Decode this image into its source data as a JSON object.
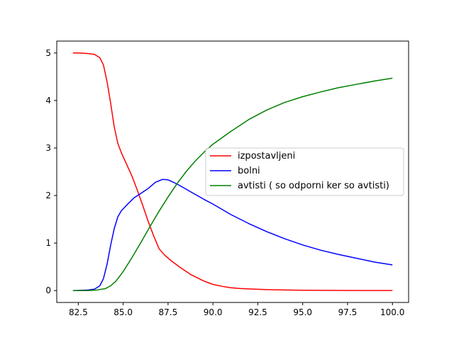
{
  "chart_data": {
    "type": "line",
    "title": "",
    "xlabel": "",
    "ylabel": "",
    "xlim": [
      81.3,
      100.9
    ],
    "ylim": [
      -0.25,
      5.25
    ],
    "xticks": [
      82.5,
      85.0,
      87.5,
      90.0,
      92.5,
      95.0,
      97.5,
      100.0
    ],
    "xtick_labels": [
      "82.5",
      "85.0",
      "87.5",
      "90.0",
      "92.5",
      "95.0",
      "97.5",
      "100.0"
    ],
    "yticks": [
      0,
      1,
      2,
      3,
      4,
      5
    ],
    "ytick_labels": [
      "0",
      "1",
      "2",
      "3",
      "4",
      "5"
    ],
    "grid": false,
    "legend_position": "center-right",
    "series": [
      {
        "name": "izpostavljeni",
        "color": "#ff0000",
        "x": [
          82.2,
          82.5,
          83.0,
          83.4,
          83.7,
          83.9,
          84.1,
          84.3,
          84.5,
          84.7,
          84.9,
          85.2,
          85.5,
          85.8,
          86.1,
          86.4,
          86.7,
          87.0,
          87.3,
          87.7,
          88.2,
          88.8,
          89.5,
          90.0,
          90.5,
          91.0,
          91.5,
          92.0,
          93.0,
          94.0,
          95.0,
          96.0,
          97.0,
          98.0,
          99.0,
          100.0
        ],
        "y": [
          5.0,
          5.0,
          4.99,
          4.97,
          4.9,
          4.75,
          4.4,
          3.95,
          3.45,
          3.1,
          2.9,
          2.65,
          2.4,
          2.1,
          1.78,
          1.45,
          1.15,
          0.88,
          0.75,
          0.62,
          0.48,
          0.33,
          0.2,
          0.13,
          0.09,
          0.06,
          0.045,
          0.035,
          0.02,
          0.012,
          0.008,
          0.005,
          0.003,
          0.002,
          0.001,
          0.001
        ]
      },
      {
        "name": "bolni",
        "color": "#0000ff",
        "x": [
          82.2,
          83.0,
          83.4,
          83.7,
          83.9,
          84.1,
          84.3,
          84.5,
          84.7,
          84.9,
          85.2,
          85.6,
          86.0,
          86.4,
          86.8,
          87.2,
          87.5,
          87.8,
          88.2,
          88.8,
          89.5,
          90.0,
          91.0,
          92.0,
          93.0,
          94.0,
          95.0,
          96.0,
          97.0,
          98.0,
          99.0,
          100.0
        ],
        "y": [
          0.0,
          0.01,
          0.03,
          0.1,
          0.25,
          0.55,
          0.95,
          1.3,
          1.55,
          1.68,
          1.8,
          1.95,
          2.05,
          2.15,
          2.28,
          2.34,
          2.33,
          2.28,
          2.2,
          2.07,
          1.92,
          1.82,
          1.6,
          1.41,
          1.24,
          1.09,
          0.96,
          0.85,
          0.76,
          0.68,
          0.6,
          0.54
        ]
      },
      {
        "name": "avtisti ( so odporni ker so avtisti)",
        "color": "#008000",
        "x": [
          82.2,
          83.0,
          83.5,
          84.0,
          84.3,
          84.6,
          85.0,
          85.5,
          86.0,
          86.5,
          87.0,
          87.5,
          88.0,
          88.5,
          89.0,
          89.5,
          90.0,
          91.0,
          92.0,
          93.0,
          94.0,
          95.0,
          96.0,
          97.0,
          98.0,
          99.0,
          100.0
        ],
        "y": [
          0.0,
          0.0,
          0.01,
          0.04,
          0.1,
          0.2,
          0.4,
          0.7,
          1.02,
          1.35,
          1.67,
          1.97,
          2.25,
          2.5,
          2.72,
          2.91,
          3.08,
          3.35,
          3.6,
          3.8,
          3.96,
          4.08,
          4.18,
          4.27,
          4.34,
          4.41,
          4.47
        ]
      }
    ]
  }
}
